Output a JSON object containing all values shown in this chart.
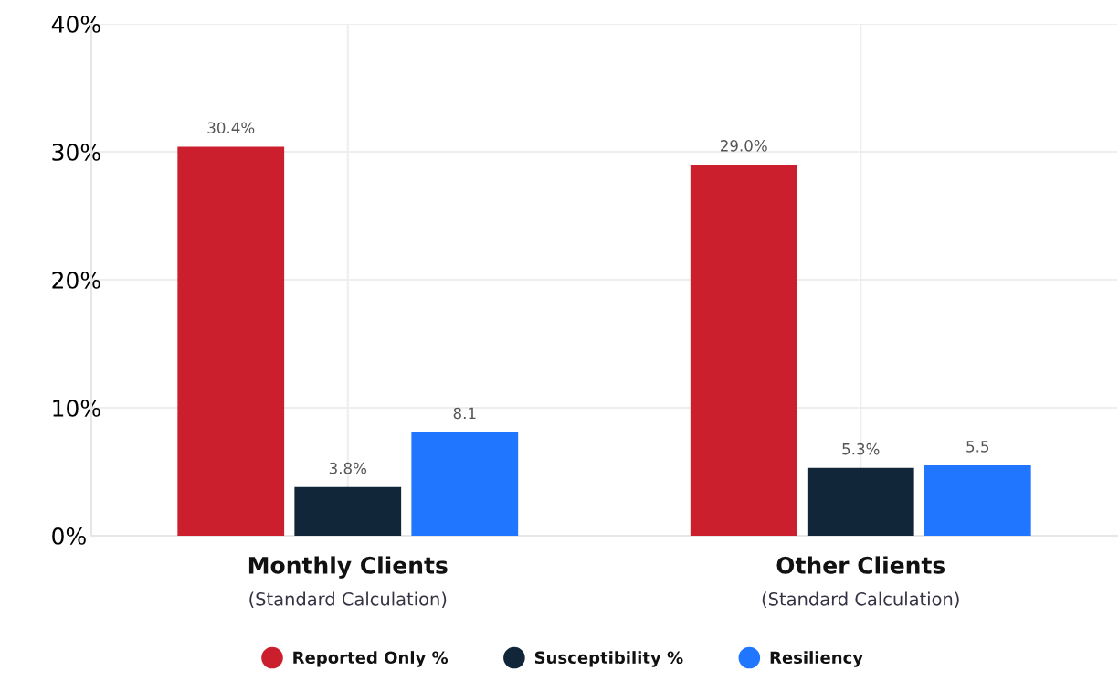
{
  "chart_data": {
    "type": "bar",
    "categories": [
      "Monthly Clients\n(Standard Calculation)",
      "Other Clients\n(Standard Calculation)"
    ],
    "series": [
      {
        "name": "Reported Only %",
        "color": "#cc1f2e",
        "values": [
          30.4,
          29.0
        ],
        "value_labels": [
          "30.4%",
          "29.0%"
        ]
      },
      {
        "name": "Susceptibility %",
        "color": "#12263a",
        "values": [
          3.8,
          5.3
        ],
        "value_labels": [
          "3.8%",
          "5.3%"
        ]
      },
      {
        "name": "Resiliency",
        "color": "#2176ff",
        "values": [
          8.1,
          5.5
        ],
        "value_labels": [
          "8.1",
          "5.5"
        ]
      }
    ],
    "ylim": [
      0,
      40
    ],
    "yticks": [
      {
        "value": 0,
        "label": "0%"
      },
      {
        "value": 10,
        "label": "10%"
      },
      {
        "value": 20,
        "label": "20%"
      },
      {
        "value": 30,
        "label": "30%"
      },
      {
        "value": 40,
        "label": "40%"
      }
    ],
    "grid": true,
    "legend": "bottom",
    "marker": "circle"
  }
}
